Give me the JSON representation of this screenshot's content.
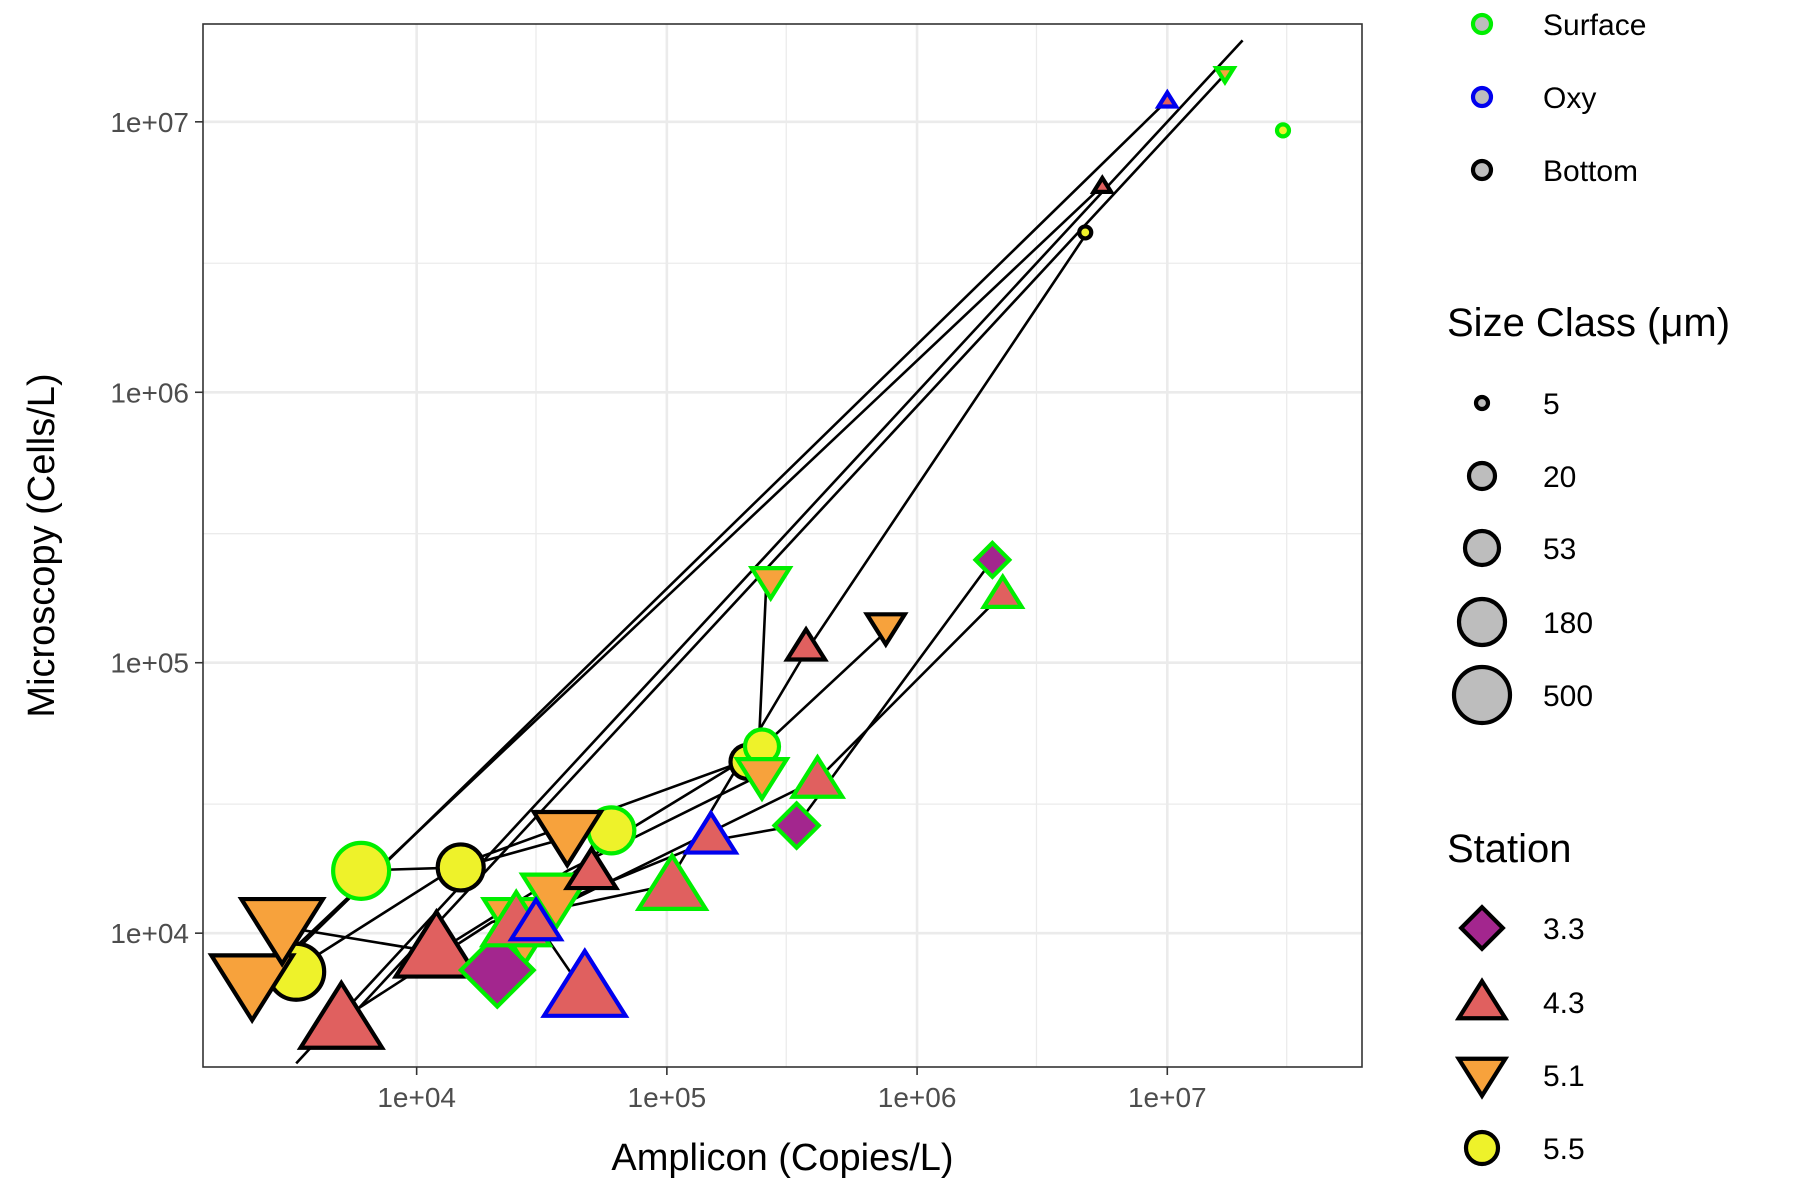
{
  "chart_data": {
    "type": "scatter",
    "title": "",
    "xlabel": "Amplicon (Copies/L)",
    "ylabel": "Microscopy (Cells/L)",
    "x_scale": "log10",
    "y_scale": "log10",
    "xlim": [
      1400,
      60000000
    ],
    "ylim": [
      3200,
      23000000
    ],
    "x_ticks": [
      {
        "value": 10000,
        "label": "1e+04"
      },
      {
        "value": 100000,
        "label": "1e+05"
      },
      {
        "value": 1000000,
        "label": "1e+06"
      },
      {
        "value": 10000000,
        "label": "1e+07"
      }
    ],
    "y_ticks": [
      {
        "value": 10000,
        "label": "1e+04"
      },
      {
        "value": 100000,
        "label": "1e+05"
      },
      {
        "value": 1000000,
        "label": "1e+06"
      },
      {
        "value": 10000000,
        "label": "1e+07"
      }
    ],
    "grid": true,
    "legend_placement": "right",
    "legends": {
      "depth": {
        "title": "",
        "items": [
          {
            "label": "Surface",
            "color": "#00ee00"
          },
          {
            "label": "Oxy",
            "color": "#0000ee"
          },
          {
            "label": "Bottom",
            "color": "#000000"
          }
        ]
      },
      "size_class": {
        "title": "Size Class (μm)",
        "items": [
          {
            "label": "5",
            "value": 5
          },
          {
            "label": "20",
            "value": 20
          },
          {
            "label": "53",
            "value": 53
          },
          {
            "label": "180",
            "value": 180
          },
          {
            "label": "500",
            "value": 500
          }
        ]
      },
      "station": {
        "title": "Station",
        "items": [
          {
            "label": "3.3",
            "shape": "diamond",
            "fill": "#a3268e"
          },
          {
            "label": "4.3",
            "shape": "triangle-up",
            "fill": "#e0605f"
          },
          {
            "label": "5.1",
            "shape": "triangle-down",
            "fill": "#f7a23c"
          },
          {
            "label": "5.5",
            "shape": "circle",
            "fill": "#eef22a"
          }
        ]
      }
    },
    "lines": [
      {
        "x": [
          3300,
          20000000
        ],
        "y": [
          3300,
          20000000
        ]
      },
      {
        "x": [
          2200,
          10000000
        ],
        "y": [
          6000,
          12000000
        ]
      },
      {
        "x": [
          2700,
          5500000
        ],
        "y": [
          7500,
          5800000
        ]
      },
      {
        "x": [
          5000,
          17000000
        ],
        "y": [
          4500,
          15000000
        ]
      },
      {
        "x": [
          5500,
          15000,
          60000
        ],
        "y": [
          17000,
          17500,
          25000
        ]
      },
      {
        "x": [
          3000,
          15000,
          200000
        ],
        "y": [
          7000,
          18000,
          43000
        ]
      },
      {
        "x": [
          3000,
          12000,
          40000,
          230000,
          250000
        ],
        "y": [
          10500,
          8500,
          17000,
          38000,
          200000
        ]
      },
      {
        "x": [
          5000,
          20000,
          100000,
          360000,
          4700000
        ],
        "y": [
          4800,
          11000,
          15000,
          110000,
          3800000
        ]
      },
      {
        "x": [
          20000,
          30000,
          150000,
          330000,
          2000000
        ],
        "y": [
          11000,
          12000,
          22000,
          25000,
          240000
        ]
      },
      {
        "x": [
          23000,
          40000,
          400000,
          2200000
        ],
        "y": [
          9000,
          13000,
          37000,
          180000
        ]
      },
      {
        "x": [
          25000,
          60000,
          230000,
          750000
        ],
        "y": [
          11000,
          22000,
          47000,
          130000
        ]
      },
      {
        "x": [
          30000,
          47000
        ],
        "y": [
          11000,
          6000
        ]
      },
      {
        "x": [
          20000,
          22000
        ],
        "y": [
          9000,
          7000
        ]
      }
    ],
    "points": [
      {
        "x": 6000,
        "y": 17000,
        "station": "5.5",
        "depth": "Surface",
        "size": 500
      },
      {
        "x": 15000,
        "y": 17500,
        "station": "5.5",
        "depth": "Bottom",
        "size": 180
      },
      {
        "x": 60000,
        "y": 24000,
        "station": "5.5",
        "depth": "Surface",
        "size": 180
      },
      {
        "x": 3300,
        "y": 7200,
        "station": "5.5",
        "depth": "Bottom",
        "size": 500
      },
      {
        "x": 210000,
        "y": 43000,
        "station": "5.5",
        "depth": "Bottom",
        "size": 53
      },
      {
        "x": 240000,
        "y": 49000,
        "station": "5.5",
        "depth": "Surface",
        "size": 53
      },
      {
        "x": 4700000,
        "y": 3900000,
        "station": "5.5",
        "depth": "Bottom",
        "size": 5
      },
      {
        "x": 29000000,
        "y": 9300000,
        "station": "5.5",
        "depth": "Surface",
        "size": 5
      },
      {
        "x": 2200,
        "y": 6500,
        "station": "5.1",
        "depth": "Bottom",
        "size": 500
      },
      {
        "x": 2900,
        "y": 10500,
        "station": "5.1",
        "depth": "Bottom",
        "size": 500
      },
      {
        "x": 27000,
        "y": 10500,
        "station": "5.1",
        "depth": "Surface",
        "size": 500
      },
      {
        "x": 40000,
        "y": 23000,
        "station": "5.1",
        "depth": "Bottom",
        "size": 180
      },
      {
        "x": 36000,
        "y": 13500,
        "station": "5.1",
        "depth": "Surface",
        "size": 180
      },
      {
        "x": 240000,
        "y": 38000,
        "station": "5.1",
        "depth": "Surface",
        "size": 53
      },
      {
        "x": 260000,
        "y": 200000,
        "station": "5.1",
        "depth": "Surface",
        "size": 20
      },
      {
        "x": 750000,
        "y": 135000,
        "station": "5.1",
        "depth": "Bottom",
        "size": 20
      },
      {
        "x": 17000000,
        "y": 15000000,
        "station": "5.1",
        "depth": "Surface",
        "size": 5
      },
      {
        "x": 5000,
        "y": 4800,
        "station": "4.3",
        "depth": "Bottom",
        "size": 500
      },
      {
        "x": 12000,
        "y": 8800,
        "station": "4.3",
        "depth": "Bottom",
        "size": 500
      },
      {
        "x": 47000,
        "y": 6300,
        "station": "4.3",
        "depth": "Oxy",
        "size": 500
      },
      {
        "x": 105000,
        "y": 15000,
        "station": "4.3",
        "depth": "Surface",
        "size": 180
      },
      {
        "x": 25000,
        "y": 11000,
        "station": "4.3",
        "depth": "Surface",
        "size": 180
      },
      {
        "x": 50000,
        "y": 17000,
        "station": "4.3",
        "depth": "Bottom",
        "size": 53
      },
      {
        "x": 150000,
        "y": 23000,
        "station": "4.3",
        "depth": "Oxy",
        "size": 53
      },
      {
        "x": 400000,
        "y": 37000,
        "station": "4.3",
        "depth": "Surface",
        "size": 53
      },
      {
        "x": 360000,
        "y": 115000,
        "station": "4.3",
        "depth": "Bottom",
        "size": 20
      },
      {
        "x": 2200000,
        "y": 180000,
        "station": "4.3",
        "depth": "Surface",
        "size": 20
      },
      {
        "x": 5500000,
        "y": 5800000,
        "station": "4.3",
        "depth": "Bottom",
        "size": 5
      },
      {
        "x": 10000000,
        "y": 12000000,
        "station": "4.3",
        "depth": "Oxy",
        "size": 5
      },
      {
        "x": 30000,
        "y": 11000,
        "station": "4.3",
        "depth": "Oxy",
        "size": 53
      },
      {
        "x": 21000,
        "y": 7300,
        "station": "3.3",
        "depth": "Surface",
        "size": 500
      },
      {
        "x": 330000,
        "y": 25000,
        "station": "3.3",
        "depth": "Surface",
        "size": 53
      },
      {
        "x": 2000000,
        "y": 240000,
        "station": "3.3",
        "depth": "Surface",
        "size": 20
      }
    ]
  }
}
